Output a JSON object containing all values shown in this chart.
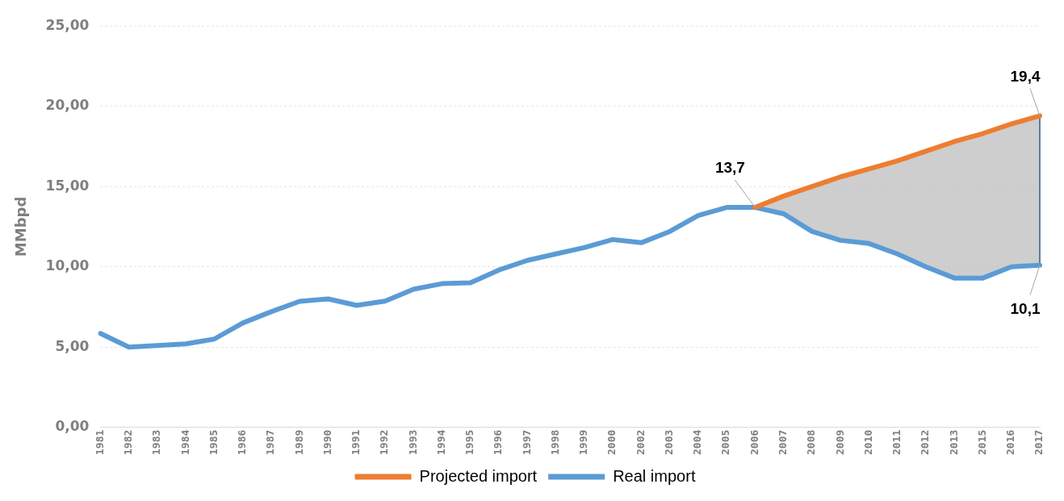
{
  "chart_data": {
    "type": "line",
    "ylabel": "MMbpd",
    "categories": [
      "1981",
      "1982",
      "1983",
      "1984",
      "1985",
      "1986",
      "1987",
      "1989",
      "1990",
      "1991",
      "1992",
      "1993",
      "1994",
      "1995",
      "1996",
      "1997",
      "1998",
      "1999",
      "2000",
      "2002",
      "2003",
      "2004",
      "2005",
      "2006",
      "2007",
      "2008",
      "2009",
      "2010",
      "2011",
      "2012",
      "2013",
      "2015",
      "2016",
      "2017"
    ],
    "series": [
      {
        "name": "Projected import",
        "color": "#ed7d31",
        "values": [
          null,
          null,
          null,
          null,
          null,
          null,
          null,
          null,
          null,
          null,
          null,
          null,
          null,
          null,
          null,
          null,
          null,
          null,
          null,
          null,
          null,
          null,
          null,
          13.7,
          14.4,
          15.0,
          15.6,
          16.1,
          16.6,
          17.2,
          17.8,
          18.3,
          18.9,
          19.4
        ]
      },
      {
        "name": "Real import",
        "color": "#5b9bd5",
        "values": [
          5.85,
          5.0,
          5.1,
          5.2,
          5.5,
          6.5,
          7.2,
          7.85,
          8.0,
          7.6,
          7.86,
          8.6,
          8.95,
          9.0,
          9.8,
          10.4,
          10.8,
          11.2,
          11.7,
          11.5,
          12.2,
          13.2,
          13.7,
          13.7,
          13.3,
          12.2,
          11.65,
          11.45,
          10.8,
          10.0,
          9.3,
          9.3,
          10.0,
          10.1
        ],
        "lower": [
          null,
          null,
          null,
          null,
          null,
          null,
          null,
          null,
          null,
          null,
          null,
          null,
          null,
          null,
          null,
          null,
          null,
          null,
          null,
          null,
          null,
          null,
          null,
          13.7,
          13.3,
          12.2,
          11.65,
          11.45,
          10.8,
          10.0,
          9.3,
          9.3,
          10.0,
          10.1
        ],
        "upper": [
          null,
          null,
          null,
          null,
          null,
          null,
          null,
          null,
          null,
          null,
          null,
          null,
          null,
          null,
          null,
          null,
          null,
          null,
          null,
          null,
          null,
          null,
          null,
          13.7,
          14.4,
          15.0,
          15.6,
          16.1,
          16.6,
          17.2,
          17.8,
          18.3,
          18.9,
          19.4
        ]
      }
    ],
    "ylim": [
      0,
      25
    ],
    "yticks": [
      {
        "value": 0,
        "label": "0,00"
      },
      {
        "value": 5,
        "label": "5,00"
      },
      {
        "value": 10,
        "label": "10,00"
      },
      {
        "value": 15,
        "label": "15,00"
      },
      {
        "value": 20,
        "label": "20,00"
      },
      {
        "value": 25,
        "label": "25,00"
      }
    ],
    "grid": "y",
    "legend": "bottom",
    "marker": "none",
    "line_style": "solid",
    "annotations": [
      {
        "text": "13,7",
        "x": "2006",
        "y": 13.7
      },
      {
        "text": "19,4",
        "x": "2017",
        "y": 19.4
      },
      {
        "text": "10,1",
        "x": "2017",
        "y": 10.1
      }
    ]
  }
}
